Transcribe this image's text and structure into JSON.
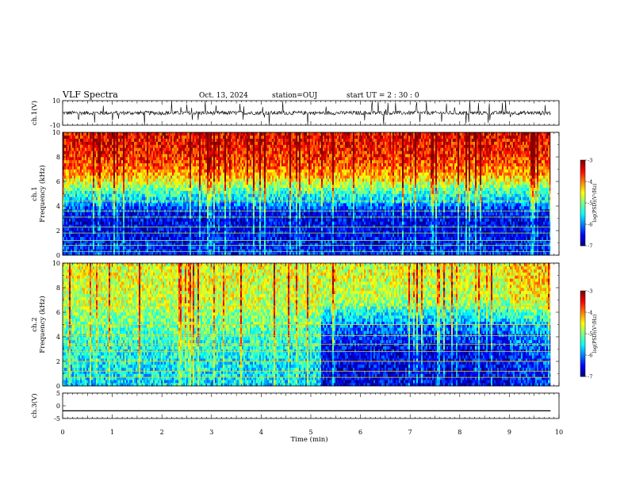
{
  "header": {
    "title": "VLF Spectra",
    "date": "Oct. 13, 2024",
    "station": "station=OUJ",
    "start_time": "start UT =  2 : 30 : 0"
  },
  "chart_data": [
    {
      "type": "line",
      "panel": "ch1-waveform",
      "ylabel": "ch.1(V)",
      "ylim": [
        -10,
        10
      ],
      "yticks": [
        10,
        -10
      ],
      "xlim": [
        0,
        9.83
      ],
      "baseline": 0,
      "note_values": "noisy VLF waveform centered near 0 V, spikes up to about 10 V"
    },
    {
      "type": "heatmap",
      "panel": "ch1-spectrogram",
      "ylabel": "ch.1 Frequency (kHz)",
      "ylim": [
        0,
        10
      ],
      "yticks": [
        "0",
        "2",
        "4",
        "6",
        "8",
        "10"
      ],
      "xlim": [
        0,
        9.83
      ],
      "colorbar": {
        "label": "log(PSD)(V²/Hz)",
        "ticks": [
          "-3",
          "-4",
          "-5",
          "-6",
          "-7"
        ],
        "range": [
          -7,
          -3
        ]
      },
      "power_profile": [
        {
          "freq_khz": 0.5,
          "log_psd": -6.4
        },
        {
          "freq_khz": 1.5,
          "log_psd": -6.5
        },
        {
          "freq_khz": 2.5,
          "log_psd": -6.6
        },
        {
          "freq_khz": 3.5,
          "log_psd": -6.5
        },
        {
          "freq_khz": 4.5,
          "log_psd": -5.7
        },
        {
          "freq_khz": 5.5,
          "log_psd": -5.0
        },
        {
          "freq_khz": 6.5,
          "log_psd": -4.2
        },
        {
          "freq_khz": 7.5,
          "log_psd": -3.8
        },
        {
          "freq_khz": 8.5,
          "log_psd": -3.6
        },
        {
          "freq_khz": 9.5,
          "log_psd": -3.5
        }
      ]
    },
    {
      "type": "heatmap",
      "panel": "ch2-spectrogram",
      "ylabel": "ch.2 Frequency (kHz)",
      "ylim": [
        0,
        10
      ],
      "yticks": [
        "0",
        "2",
        "4",
        "6",
        "8",
        "10"
      ],
      "xlim": [
        0,
        9.83
      ],
      "colorbar": {
        "label": "log(PSD)(V²/Hz)",
        "ticks": [
          "-3",
          "-4",
          "-5",
          "-6",
          "-7"
        ],
        "range": [
          -7,
          -3
        ]
      },
      "power_profile_before_5_2min": [
        {
          "freq_khz": 1,
          "log_psd": -5.6
        },
        {
          "freq_khz": 3,
          "log_psd": -5.4
        },
        {
          "freq_khz": 5,
          "log_psd": -5.1
        },
        {
          "freq_khz": 7,
          "log_psd": -4.7
        },
        {
          "freq_khz": 9,
          "log_psd": -4.6
        }
      ],
      "power_profile_after_5_2min": [
        {
          "freq_khz": 1,
          "log_psd": -6.6
        },
        {
          "freq_khz": 3,
          "log_psd": -6.5
        },
        {
          "freq_khz": 5,
          "log_psd": -6.0
        },
        {
          "freq_khz": 7,
          "log_psd": -4.8
        },
        {
          "freq_khz": 9,
          "log_psd": -4.6
        }
      ]
    },
    {
      "type": "line",
      "panel": "ch3-waveform",
      "ylabel": "ch.3(V)",
      "ylim": [
        -5,
        5
      ],
      "yticks": [
        "5",
        "0",
        "-5"
      ],
      "xlim": [
        0,
        9.83
      ],
      "constant_value": -2
    }
  ],
  "xaxis": {
    "label": "Time (min)",
    "ticks": [
      "0",
      "1",
      "2",
      "3",
      "4",
      "5",
      "6",
      "7",
      "8",
      "9",
      "10"
    ],
    "range": [
      0,
      10
    ]
  },
  "colors": {
    "background": "#ffffff",
    "axes": "#000000"
  }
}
